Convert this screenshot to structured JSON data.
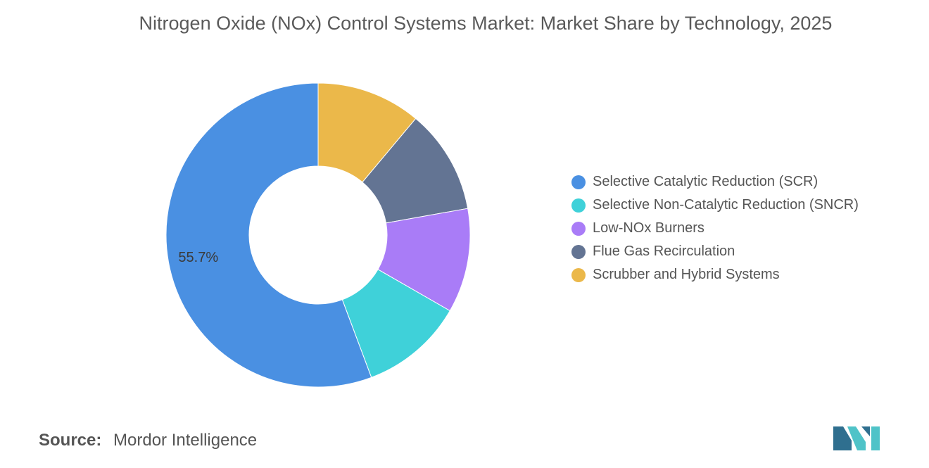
{
  "title": "Nitrogen Oxide (NOx) Control Systems Market: Market Share by Technology, 2025",
  "source": {
    "label": "Source:",
    "value": "Mordor Intelligence"
  },
  "colors": {
    "scr": "#4a90e2",
    "sncr": "#3fd1d9",
    "low_nox": "#a97cf7",
    "fgr": "#637493",
    "scrubber": "#ebb84a",
    "logo_dark": "#2f6f8f",
    "logo_light": "#4fc3c8"
  },
  "chart_data": {
    "type": "pie",
    "variant": "donut",
    "title": "Nitrogen Oxide (NOx) Control Systems Market: Market Share by Technology, 2025",
    "legend_position": "right",
    "series": [
      {
        "name": "Scrubber and Hybrid Systems",
        "value": 11.1,
        "color": "#ebb84a"
      },
      {
        "name": "Flue Gas Recirculation",
        "value": 11.1,
        "color": "#637493"
      },
      {
        "name": "Low-NOx Burners",
        "value": 11.1,
        "color": "#a97cf7"
      },
      {
        "name": "Selective Non-Catalytic Reduction (SNCR)",
        "value": 11.0,
        "color": "#3fd1d9"
      },
      {
        "name": "Selective Catalytic Reduction (SCR)",
        "value": 55.7,
        "color": "#4a90e2",
        "data_label": "55.7%"
      }
    ],
    "legend": [
      {
        "label": "Selective Catalytic Reduction (SCR)",
        "color": "#4a90e2"
      },
      {
        "label": "Selective Non-Catalytic Reduction (SNCR)",
        "color": "#3fd1d9"
      },
      {
        "label": "Low-NOx Burners",
        "color": "#a97cf7"
      },
      {
        "label": "Flue Gas Recirculation",
        "color": "#637493"
      },
      {
        "label": "Scrubber and Hybrid Systems",
        "color": "#ebb84a"
      }
    ]
  }
}
